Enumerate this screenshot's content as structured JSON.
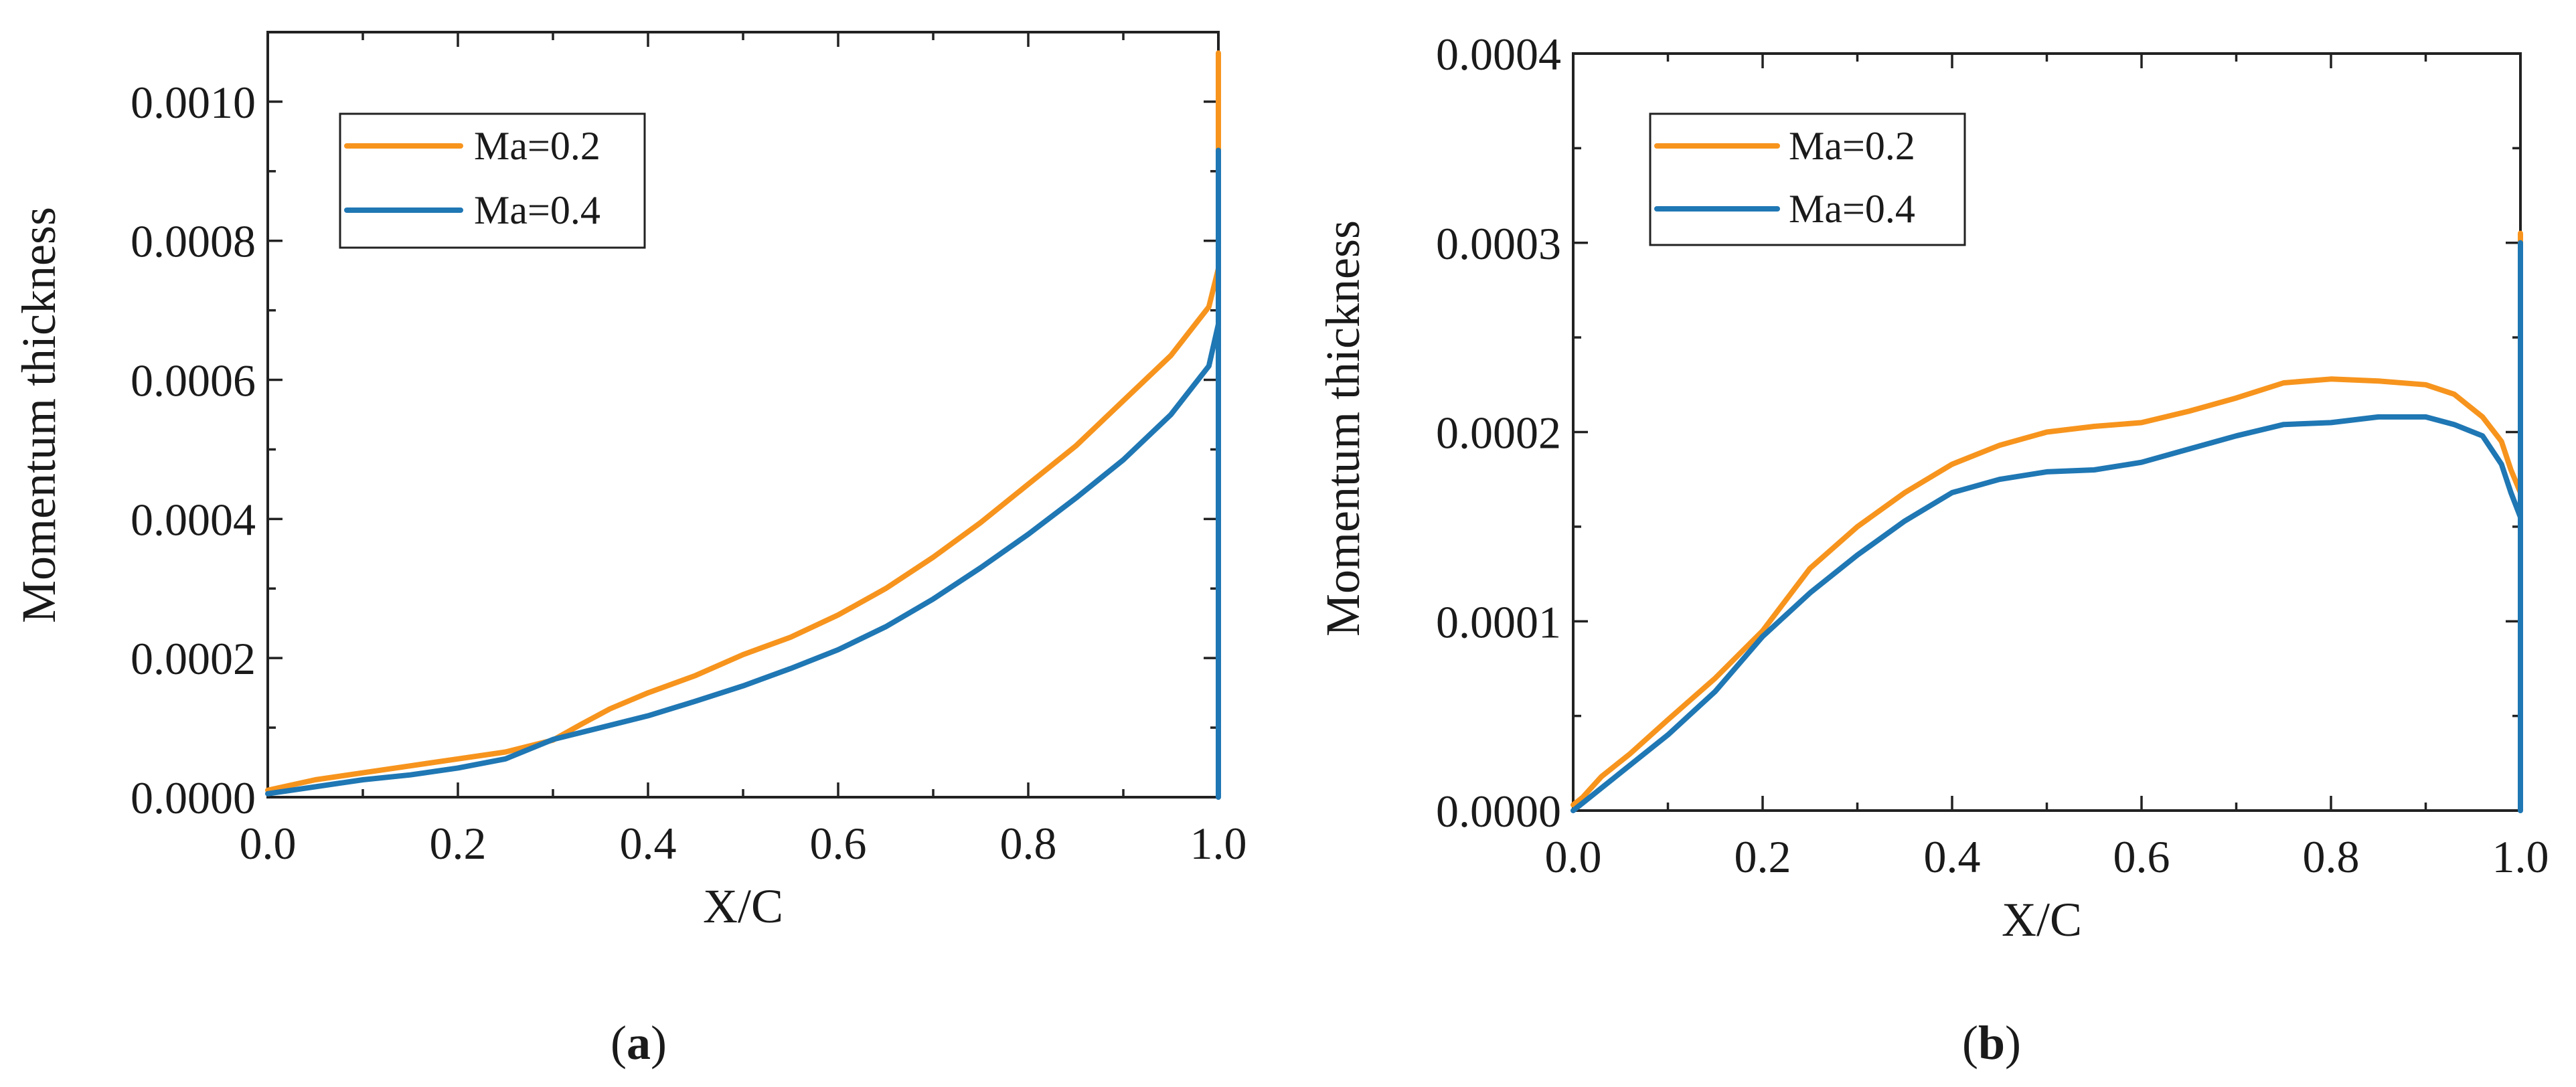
{
  "colors": {
    "ma02": "#F7941D",
    "ma04": "#1F77B4"
  },
  "chart_data": [
    {
      "type": "line",
      "panel_label": "a",
      "caption_open": "(",
      "caption_close": ")",
      "xlabel": "X/C",
      "ylabel": "Momentum thickness",
      "xlim": [
        0.0,
        1.0
      ],
      "ylim": [
        0.0,
        0.0011
      ],
      "xticks": [
        0.0,
        0.2,
        0.4,
        0.6,
        0.8,
        1.0
      ],
      "xtick_labels": [
        "0.0",
        "0.2",
        "0.4",
        "0.6",
        "0.8",
        "1.0"
      ],
      "yticks": [
        0.0,
        0.0002,
        0.0004,
        0.0006,
        0.0008,
        0.001
      ],
      "ytick_labels": [
        "0.0000",
        "0.0002",
        "0.0004",
        "0.0006",
        "0.0008",
        "0.0010"
      ],
      "yminor": [
        0.0001,
        0.0003,
        0.0005,
        0.0007,
        0.0009
      ],
      "legend_position": "top-left",
      "series": [
        {
          "name": "Ma=0.2",
          "color_key": "ma02",
          "x": [
            0.0,
            0.05,
            0.1,
            0.15,
            0.2,
            0.25,
            0.3,
            0.33,
            0.36,
            0.4,
            0.45,
            0.5,
            0.55,
            0.6,
            0.65,
            0.7,
            0.75,
            0.8,
            0.85,
            0.9,
            0.95,
            0.99,
            1.0,
            1.0,
            1.0
          ],
          "y": [
            1e-05,
            2.5e-05,
            3.5e-05,
            4.5e-05,
            5.5e-05,
            6.5e-05,
            8.2e-05,
            0.000105,
            0.000127,
            0.00015,
            0.000175,
            0.000205,
            0.00023,
            0.000262,
            0.0003,
            0.000345,
            0.000395,
            0.00045,
            0.000505,
            0.00057,
            0.000635,
            0.000705,
            0.00076,
            0.00094,
            0.00107
          ]
        },
        {
          "name": "Ma=0.4",
          "color_key": "ma04",
          "x": [
            0.0,
            0.05,
            0.1,
            0.15,
            0.2,
            0.25,
            0.3,
            0.35,
            0.4,
            0.45,
            0.5,
            0.55,
            0.6,
            0.65,
            0.7,
            0.75,
            0.8,
            0.85,
            0.9,
            0.95,
            0.99,
            1.0,
            1.0,
            1.0
          ],
          "y": [
            5e-06,
            1.5e-05,
            2.5e-05,
            3.2e-05,
            4.2e-05,
            5.5e-05,
            8.3e-05,
            0.0001,
            0.000117,
            0.000138,
            0.00016,
            0.000185,
            0.000212,
            0.000245,
            0.000285,
            0.00033,
            0.000378,
            0.00043,
            0.000485,
            0.00055,
            0.00062,
            0.00068,
            0.00093,
            0.0
          ]
        }
      ]
    },
    {
      "type": "line",
      "panel_label": "b",
      "caption_open": "(",
      "caption_close": ")",
      "xlabel": "X/C",
      "ylabel": "Momentum thickness",
      "xlim": [
        0.0,
        1.0
      ],
      "ylim": [
        0.0,
        0.0004
      ],
      "xticks": [
        0.0,
        0.2,
        0.4,
        0.6,
        0.8,
        1.0
      ],
      "xtick_labels": [
        "0.0",
        "0.2",
        "0.4",
        "0.6",
        "0.8",
        "1.0"
      ],
      "yticks": [
        0.0,
        0.0001,
        0.0002,
        0.0003,
        0.0004
      ],
      "ytick_labels": [
        "0.0000",
        "0.0001",
        "0.0002",
        "0.0003",
        "0.0004"
      ],
      "yminor": [
        5e-05,
        0.00015,
        0.00025,
        0.00035
      ],
      "legend_position": "top-left",
      "series": [
        {
          "name": "Ma=0.2",
          "color_key": "ma02",
          "x": [
            0.0,
            0.01,
            0.03,
            0.06,
            0.1,
            0.15,
            0.2,
            0.25,
            0.3,
            0.35,
            0.4,
            0.45,
            0.5,
            0.55,
            0.6,
            0.65,
            0.7,
            0.75,
            0.8,
            0.85,
            0.9,
            0.93,
            0.96,
            0.98,
            0.99,
            1.0,
            1.0,
            1.0
          ],
          "y": [
            3e-06,
            7e-06,
            1.8e-05,
            3e-05,
            4.8e-05,
            7e-05,
            9.5e-05,
            0.000128,
            0.00015,
            0.000168,
            0.000183,
            0.000193,
            0.0002,
            0.000203,
            0.000205,
            0.000211,
            0.000218,
            0.000226,
            0.000228,
            0.000227,
            0.000225,
            0.00022,
            0.000208,
            0.000195,
            0.00018,
            0.000168,
            0.000305,
            1e-05
          ]
        },
        {
          "name": "Ma=0.4",
          "color_key": "ma04",
          "x": [
            0.0,
            0.01,
            0.03,
            0.06,
            0.1,
            0.15,
            0.2,
            0.25,
            0.3,
            0.35,
            0.4,
            0.45,
            0.5,
            0.55,
            0.6,
            0.65,
            0.7,
            0.75,
            0.8,
            0.85,
            0.9,
            0.93,
            0.96,
            0.98,
            0.99,
            1.0,
            1.0,
            1.0
          ],
          "y": [
            0.0,
            4e-06,
            1.2e-05,
            2.4e-05,
            4e-05,
            6.3e-05,
            9.2e-05,
            0.000115,
            0.000135,
            0.000153,
            0.000168,
            0.000175,
            0.000179,
            0.00018,
            0.000184,
            0.000191,
            0.000198,
            0.000204,
            0.000205,
            0.000208,
            0.000208,
            0.000204,
            0.000198,
            0.000183,
            0.000168,
            0.000155,
            0.0003,
            0.0
          ]
        }
      ]
    }
  ]
}
